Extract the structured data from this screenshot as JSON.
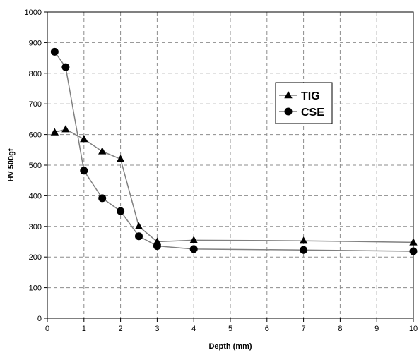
{
  "chart_data": {
    "type": "line",
    "title": "",
    "xlabel": "Depth (mm)",
    "ylabel": "HV 500gf",
    "xlim": [
      0,
      10
    ],
    "ylim": [
      0,
      1000
    ],
    "xticks": [
      0,
      1,
      2,
      3,
      4,
      5,
      6,
      7,
      8,
      9,
      10
    ],
    "yticks": [
      0,
      100,
      200,
      300,
      400,
      500,
      600,
      700,
      800,
      900,
      1000
    ],
    "grid": true,
    "legend_position": "upper-right",
    "line_color": "#808080",
    "marker_color": "#000000",
    "series": [
      {
        "name": "TIG",
        "marker": "triangle",
        "x": [
          0.2,
          0.5,
          1,
          1.5,
          2,
          2.5,
          3,
          4,
          7,
          10
        ],
        "y": [
          607,
          617,
          585,
          545,
          520,
          300,
          250,
          255,
          253,
          248
        ]
      },
      {
        "name": "CSE",
        "marker": "circle",
        "x": [
          0.2,
          0.5,
          1,
          1.5,
          2,
          2.5,
          3,
          4,
          7,
          10
        ],
        "y": [
          870,
          820,
          482,
          392,
          350,
          268,
          236,
          226,
          223,
          219
        ]
      }
    ]
  }
}
